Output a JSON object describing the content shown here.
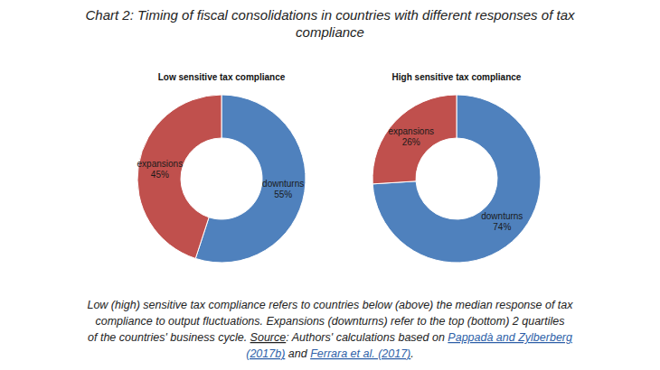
{
  "title": [
    "Chart 2: Timing of fiscal consolidations in countries with different responses of tax",
    "compliance"
  ],
  "chart_data": [
    {
      "type": "pie",
      "title": "Low sensitive tax compliance",
      "categories": [
        "downturns",
        "expansions"
      ],
      "values": [
        55,
        45
      ],
      "value_labels": [
        "55%",
        "45%"
      ],
      "colors": [
        "#4f81bd",
        "#c0504d"
      ],
      "data_labels": true
    },
    {
      "type": "pie",
      "title": "High sensitive tax compliance",
      "categories": [
        "downturns",
        "expansions"
      ],
      "values": [
        74,
        26
      ],
      "value_labels": [
        "74%",
        "26%"
      ],
      "colors": [
        "#4f81bd",
        "#c0504d"
      ],
      "data_labels": true
    }
  ],
  "caption": [
    [
      {
        "text": "Low (high) sensitive tax compliance refers to countries below (above) the median response of tax",
        "style": "plain"
      }
    ],
    [
      {
        "text": "compliance to output fluctuations. Expansions (downturns) refer to the top (bottom) 2 quartiles",
        "style": "plain"
      }
    ],
    [
      {
        "text": "of the countries' business cycle. ",
        "style": "plain"
      },
      {
        "text": "Source",
        "style": "underline"
      },
      {
        "text": ": Authors' calculations based on ",
        "style": "plain"
      },
      {
        "text": "Pappadà and Zylberberg",
        "style": "link"
      }
    ],
    [
      {
        "text": "(2017b)",
        "style": "link"
      },
      {
        "text": " and ",
        "style": "plain"
      },
      {
        "text": "Ferrara et al. (2017)",
        "style": "link"
      },
      {
        "text": ".",
        "style": "plain"
      }
    ]
  ]
}
